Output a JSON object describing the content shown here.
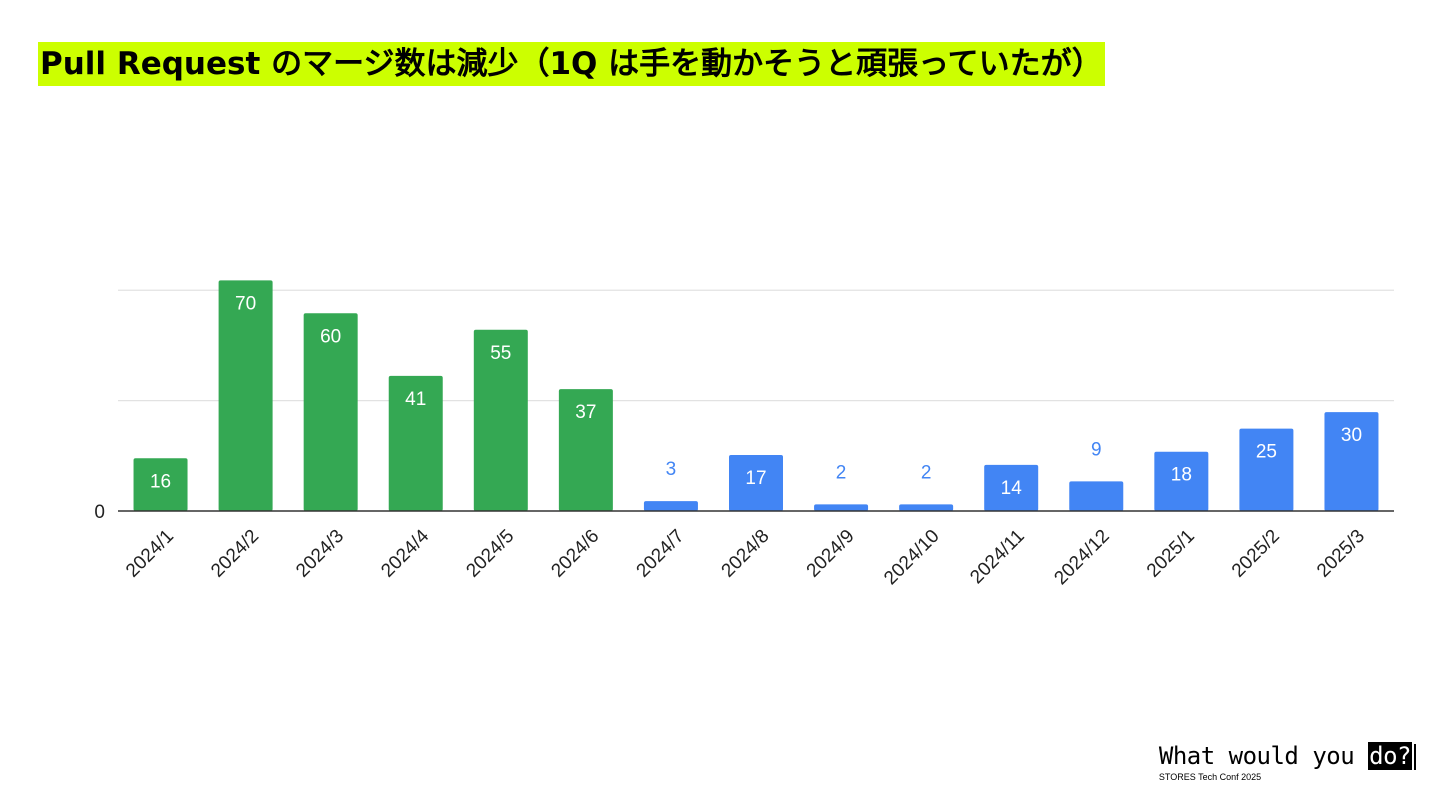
{
  "title": "Pull Request のマージ数は減少（1Q は手を動かそうと頑張っていたが）",
  "highlight_color": "#ccff00",
  "brand": {
    "main": "What would you ",
    "accent": "do?",
    "sub": "STORES Tech Conf 2025"
  },
  "chart_data": {
    "type": "bar",
    "categories": [
      "2024/1",
      "2024/2",
      "2024/3",
      "2024/4",
      "2024/5",
      "2024/6",
      "2024/7",
      "2024/8",
      "2024/9",
      "2024/10",
      "2024/11",
      "2024/12",
      "2025/1",
      "2025/2",
      "2025/3"
    ],
    "values": [
      16,
      70,
      60,
      41,
      55,
      37,
      3,
      17,
      2,
      2,
      14,
      9,
      18,
      25,
      30
    ],
    "colors": [
      "#34a853",
      "#34a853",
      "#34a853",
      "#34a853",
      "#34a853",
      "#34a853",
      "#4285f4",
      "#4285f4",
      "#4285f4",
      "#4285f4",
      "#4285f4",
      "#4285f4",
      "#4285f4",
      "#4285f4",
      "#4285f4"
    ],
    "y_tick_labels": [
      "0"
    ],
    "ylim": [
      0,
      80
    ],
    "gridlines_at": [
      0,
      33.5,
      67
    ],
    "grid": true,
    "title": "",
    "xlabel": "",
    "ylabel": ""
  }
}
